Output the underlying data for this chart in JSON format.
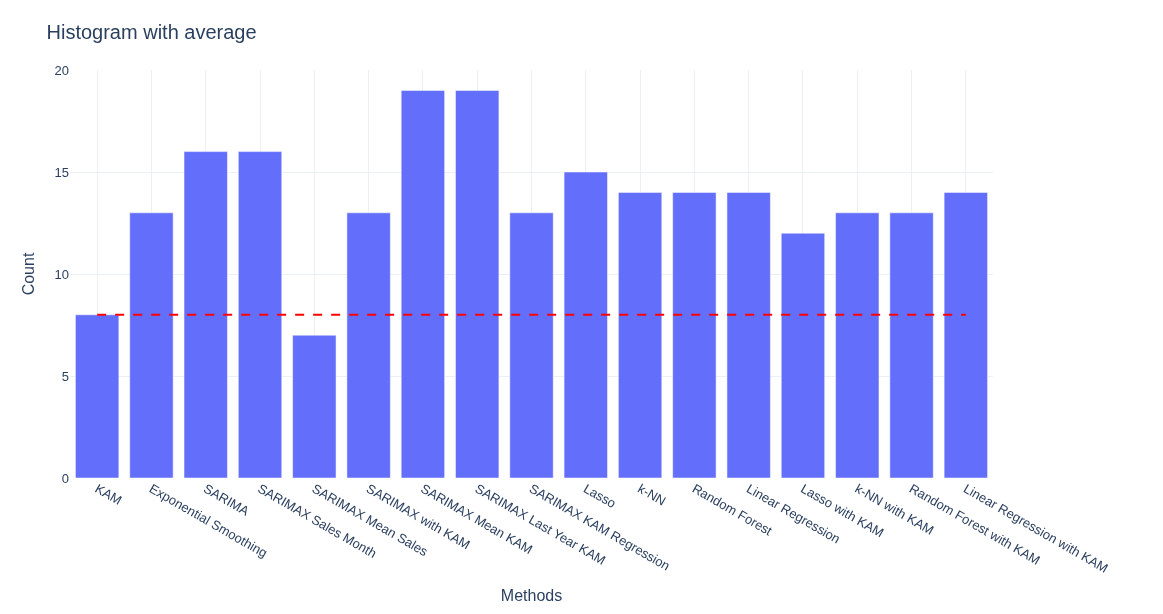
{
  "chart_data": {
    "type": "bar",
    "title": "Histogram with average",
    "xlabel": "Methods",
    "ylabel": "Count",
    "categories": [
      "KAM",
      "Exponential Smoothing",
      "SARIMA",
      "SARIMAX Sales Month",
      "SARIMAX Mean Sales",
      "SARIMAX with KAM",
      "SARIMAX Mean KAM",
      "SARIMAX Last Year KAM",
      "SARIMAX KAM Regression",
      "Lasso",
      "k-NN",
      "Random Forest",
      "Linear Regression",
      "Lasso with KAM",
      "k-NN with KAM",
      "Random Forest with KAM",
      "Linear Regression with KAM"
    ],
    "values": [
      8,
      13,
      16,
      16,
      7,
      13,
      19,
      19,
      13,
      15,
      14,
      14,
      14,
      12,
      13,
      13,
      14
    ],
    "color": "#636efa",
    "ylim": [
      0,
      20
    ],
    "yticks": [
      0,
      5,
      10,
      15,
      20
    ],
    "grid": true,
    "ref_lines": [
      {
        "axis": "y",
        "value": 8,
        "color": "#ff0000",
        "line_style": "dashed"
      }
    ]
  }
}
